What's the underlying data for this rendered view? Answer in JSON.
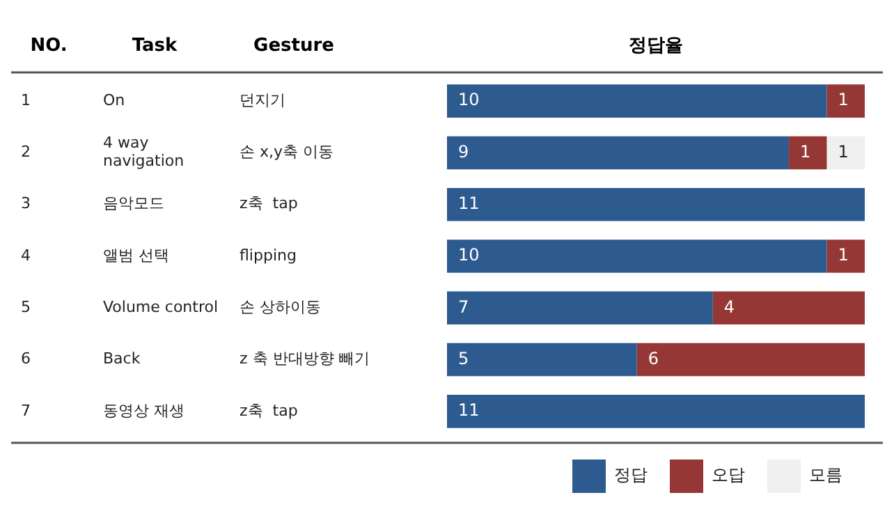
{
  "chart_data": {
    "type": "bar",
    "orientation": "horizontal",
    "stacked": true,
    "title": "정답율",
    "categories": [
      "On",
      "4 way navigation",
      "음악모드",
      "앨범 선택",
      "Volume control",
      "Back",
      "동영상 재생"
    ],
    "series": [
      {
        "name": "정답",
        "color": "#2e5b8f",
        "values": [
          10,
          9,
          11,
          10,
          7,
          5,
          11
        ]
      },
      {
        "name": "오답",
        "color": "#953735",
        "values": [
          1,
          1,
          null,
          1,
          4,
          6,
          null
        ]
      },
      {
        "name": "모름",
        "color": "#f0f0f0",
        "values": [
          null,
          1,
          null,
          null,
          null,
          null,
          null
        ]
      }
    ],
    "xlim": [
      0,
      11
    ],
    "tick_labels": "y",
    "legend": "bottom right",
    "data_labels": true,
    "annotations": [
      "NO.",
      "Task",
      "Gesture",
      "1",
      "던지기",
      "2",
      "손 x,y축 이동",
      "3",
      "z축  tap",
      "4",
      "flipping",
      "5",
      "손 상하이동",
      "6",
      "z 축 반대방향 빼기",
      "7",
      "z축  tap"
    ]
  }
}
